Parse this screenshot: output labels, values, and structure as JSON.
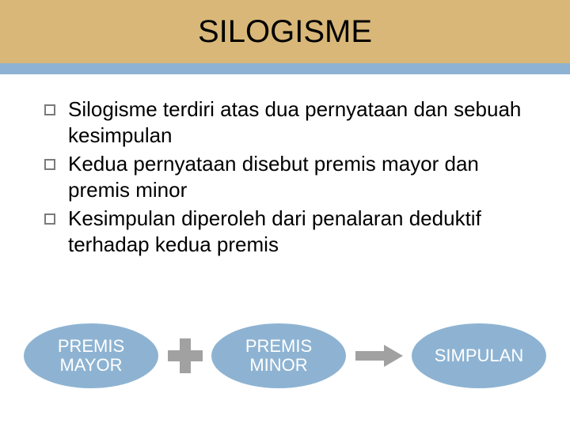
{
  "colors": {
    "title_bg": "#d8b778",
    "accent": "#8eb3d2",
    "oval_fill": "#8eb3d2",
    "plus_fill": "#a1a1a1",
    "arrow_fill": "#a1a1a1",
    "text": "#000000",
    "oval_text": "#ffffff"
  },
  "title": "SILOGISME",
  "bullets": [
    "Silogisme terdiri atas dua pernyataan dan sebuah kesimpulan",
    "Kedua pernyataan disebut premis mayor dan premis minor",
    "Kesimpulan diperoleh dari penalaran deduktif terhadap kedua premis"
  ],
  "diagram": {
    "node1": "PREMIS\nMAYOR",
    "node2": "PREMIS\nMINOR",
    "node3": "SIMPULAN"
  }
}
